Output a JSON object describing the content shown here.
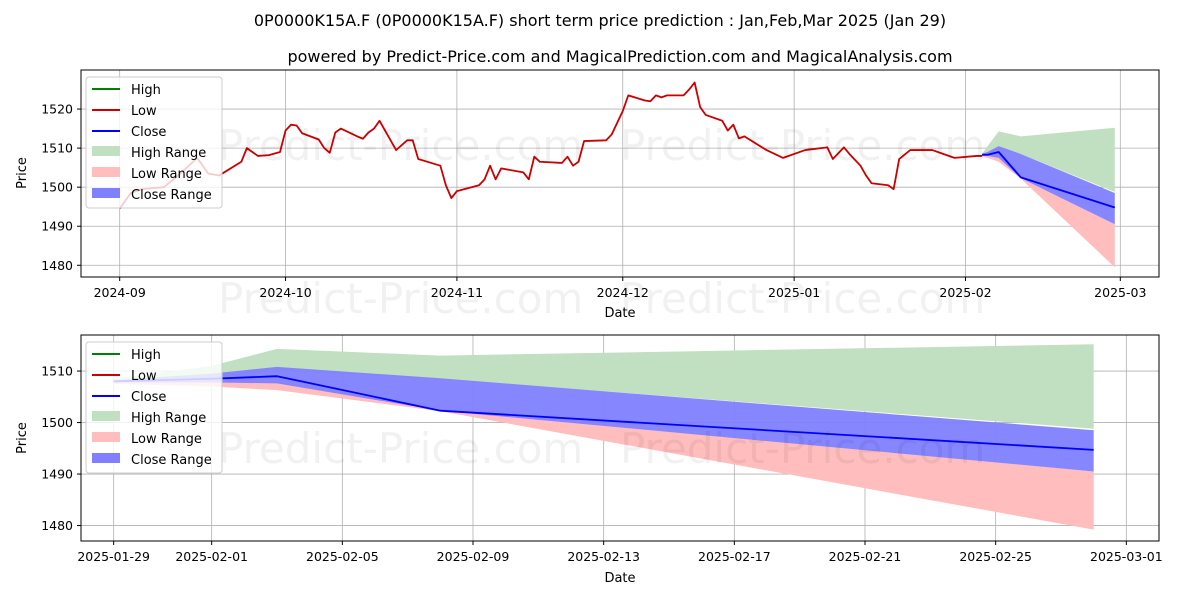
{
  "header": {
    "title": "0P0000K15A.F (0P0000K15A.F) short term price prediction : Jan,Feb,Mar 2025 (Jan 29)",
    "subtitle": "powered by Predict-Price.com and MagicalPrediction.com and MagicalAnalysis.com"
  },
  "watermark": "Predict-Price.com",
  "colors": {
    "high": "#008000",
    "low": "#cc0000",
    "close": "#0000ff",
    "high_range": "#c1dfc1",
    "low_range": "#ffbdbd",
    "close_range": "#7f7fff",
    "grid": "#b0b0b0"
  },
  "legend": [
    "High",
    "Low",
    "Close",
    "High Range",
    "Low Range",
    "Close Range"
  ],
  "chart_data": [
    {
      "type": "line",
      "xlabel": "Date",
      "ylabel": "Price",
      "xlim": [
        "2024-08-25",
        "2025-03-08"
      ],
      "ylim": [
        1477,
        1530
      ],
      "x_ticks": [
        "2024-09-01",
        "2024-10-01",
        "2024-11-01",
        "2024-12-01",
        "2025-01-01",
        "2025-02-01",
        "2025-03-01"
      ],
      "x_tick_labels": [
        "2024-09",
        "2024-10",
        "2024-11",
        "2024-12",
        "2025-01",
        "2025-02",
        "2025-03"
      ],
      "y_ticks": [
        1480,
        1490,
        1500,
        1510,
        1520
      ],
      "grid": true,
      "legend_position": "upper-left",
      "series": [
        {
          "name": "Low",
          "points": [
            [
              "2024-09-01",
              1494.5
            ],
            [
              "2024-09-03",
              1498.5
            ],
            [
              "2024-09-05",
              1499.5
            ],
            [
              "2024-09-09",
              1500.0
            ],
            [
              "2024-09-12",
              1503.5
            ],
            [
              "2024-09-15",
              1507.5
            ],
            [
              "2024-09-17",
              1503.5
            ],
            [
              "2024-09-19",
              1503.0
            ],
            [
              "2024-09-23",
              1506.5
            ],
            [
              "2024-09-24",
              1510.0
            ],
            [
              "2024-09-26",
              1508.0
            ],
            [
              "2024-09-28",
              1508.2
            ],
            [
              "2024-09-30",
              1509.0
            ],
            [
              "2024-10-01",
              1514.5
            ],
            [
              "2024-10-02",
              1516.0
            ],
            [
              "2024-10-03",
              1515.8
            ],
            [
              "2024-10-04",
              1513.8
            ],
            [
              "2024-10-07",
              1512.2
            ],
            [
              "2024-10-08",
              1510.0
            ],
            [
              "2024-10-09",
              1508.8
            ],
            [
              "2024-10-10",
              1514.0
            ],
            [
              "2024-10-11",
              1515.0
            ],
            [
              "2024-10-14",
              1513.0
            ],
            [
              "2024-10-15",
              1512.4
            ],
            [
              "2024-10-16",
              1514.0
            ],
            [
              "2024-10-17",
              1515.0
            ],
            [
              "2024-10-18",
              1517.0
            ],
            [
              "2024-10-21",
              1509.5
            ],
            [
              "2024-10-23",
              1512.0
            ],
            [
              "2024-10-24",
              1512.0
            ],
            [
              "2024-10-25",
              1507.2
            ],
            [
              "2024-10-29",
              1505.5
            ],
            [
              "2024-10-30",
              1500.5
            ],
            [
              "2024-10-31",
              1497.2
            ],
            [
              "2024-11-01",
              1499.0
            ],
            [
              "2024-11-05",
              1500.5
            ],
            [
              "2024-11-06",
              1502.0
            ],
            [
              "2024-11-07",
              1505.5
            ],
            [
              "2024-11-08",
              1502.0
            ],
            [
              "2024-11-09",
              1504.8
            ],
            [
              "2024-11-13",
              1503.8
            ],
            [
              "2024-11-14",
              1502.0
            ],
            [
              "2024-11-15",
              1507.8
            ],
            [
              "2024-11-16",
              1506.5
            ],
            [
              "2024-11-20",
              1506.2
            ],
            [
              "2024-11-21",
              1507.8
            ],
            [
              "2024-11-22",
              1505.5
            ],
            [
              "2024-11-23",
              1506.5
            ],
            [
              "2024-11-24",
              1511.8
            ],
            [
              "2024-11-28",
              1512.0
            ],
            [
              "2024-11-29",
              1513.5
            ],
            [
              "2024-12-01",
              1519.5
            ],
            [
              "2024-12-02",
              1523.5
            ],
            [
              "2024-12-05",
              1522.2
            ],
            [
              "2024-12-06",
              1522.0
            ],
            [
              "2024-12-07",
              1523.5
            ],
            [
              "2024-12-08",
              1523.0
            ],
            [
              "2024-12-09",
              1523.5
            ],
            [
              "2024-12-12",
              1523.5
            ],
            [
              "2024-12-13",
              1525.0
            ],
            [
              "2024-12-14",
              1526.8
            ],
            [
              "2024-12-15",
              1520.5
            ],
            [
              "2024-12-16",
              1518.5
            ],
            [
              "2024-12-19",
              1517.0
            ],
            [
              "2024-12-20",
              1514.5
            ],
            [
              "2024-12-21",
              1516.0
            ],
            [
              "2024-12-22",
              1512.5
            ],
            [
              "2024-12-23",
              1513.0
            ],
            [
              "2024-12-27",
              1509.5
            ],
            [
              "2024-12-30",
              1507.5
            ],
            [
              "2025-01-03",
              1509.5
            ],
            [
              "2025-01-07",
              1510.2
            ],
            [
              "2025-01-08",
              1507.2
            ],
            [
              "2025-01-10",
              1510.2
            ],
            [
              "2025-01-11",
              1508.5
            ],
            [
              "2025-01-13",
              1505.5
            ],
            [
              "2025-01-14",
              1503.0
            ],
            [
              "2025-01-15",
              1501.0
            ],
            [
              "2025-01-18",
              1500.5
            ],
            [
              "2025-01-19",
              1499.5
            ],
            [
              "2025-01-20",
              1507.2
            ],
            [
              "2025-01-22",
              1509.5
            ],
            [
              "2025-01-24",
              1509.5
            ],
            [
              "2025-01-26",
              1509.5
            ],
            [
              "2025-01-28",
              1508.5
            ],
            [
              "2025-01-30",
              1507.5
            ],
            [
              "2025-02-03",
              1508.0
            ],
            [
              "2025-02-04",
              1508.0
            ]
          ]
        },
        {
          "name": "Close",
          "points": [
            [
              "2025-02-04",
              1508.3
            ],
            [
              "2025-02-05",
              1508.3
            ],
            [
              "2025-02-07",
              1509.0
            ],
            [
              "2025-02-11",
              1502.5
            ],
            [
              "2025-02-28",
              1494.8
            ]
          ]
        }
      ],
      "ranges": [
        {
          "name": "High Range",
          "upper": [
            [
              "2025-02-04",
              1508.6
            ],
            [
              "2025-02-05",
              1510.5
            ],
            [
              "2025-02-07",
              1514.3
            ],
            [
              "2025-02-11",
              1513.0
            ],
            [
              "2025-02-28",
              1515.2
            ]
          ],
          "lower": [
            [
              "2025-02-04",
              1508.2
            ],
            [
              "2025-02-05",
              1508.5
            ],
            [
              "2025-02-07",
              1509.5
            ],
            [
              "2025-02-11",
              1508.5
            ],
            [
              "2025-02-28",
              1498.8
            ]
          ]
        },
        {
          "name": "Low Range",
          "upper": [
            [
              "2025-02-04",
              1508.2
            ],
            [
              "2025-02-05",
              1508.2
            ],
            [
              "2025-02-07",
              1508.0
            ],
            [
              "2025-02-11",
              1502.5
            ],
            [
              "2025-02-28",
              1490.5
            ]
          ],
          "lower": [
            [
              "2025-02-04",
              1507.8
            ],
            [
              "2025-02-05",
              1507.5
            ],
            [
              "2025-02-07",
              1506.5
            ],
            [
              "2025-02-11",
              1502.2
            ],
            [
              "2025-02-28",
              1479.5
            ]
          ]
        },
        {
          "name": "Close Range",
          "upper": [
            [
              "2025-02-04",
              1508.6
            ],
            [
              "2025-02-05",
              1509.0
            ],
            [
              "2025-02-07",
              1510.5
            ],
            [
              "2025-02-11",
              1508.5
            ],
            [
              "2025-02-28",
              1498.5
            ]
          ],
          "lower": [
            [
              "2025-02-04",
              1508.0
            ],
            [
              "2025-02-05",
              1508.0
            ],
            [
              "2025-02-07",
              1507.5
            ],
            [
              "2025-02-11",
              1502.3
            ],
            [
              "2025-02-28",
              1490.5
            ]
          ]
        }
      ]
    },
    {
      "type": "line",
      "xlabel": "Date",
      "ylabel": "Price",
      "xlim": [
        "2025-01-28",
        "2025-03-02"
      ],
      "ylim": [
        1477,
        1517
      ],
      "x_ticks": [
        "2025-01-29",
        "2025-02-01",
        "2025-02-05",
        "2025-02-09",
        "2025-02-13",
        "2025-02-17",
        "2025-02-21",
        "2025-02-25",
        "2025-03-01"
      ],
      "y_ticks": [
        1480,
        1490,
        1500,
        1510
      ],
      "grid": true,
      "legend_position": "upper-left",
      "series": [
        {
          "name": "Close",
          "points": [
            [
              "2025-01-29",
              1508.0
            ],
            [
              "2025-02-01",
              1508.5
            ],
            [
              "2025-02-03",
              1509.0
            ],
            [
              "2025-02-08",
              1502.3
            ],
            [
              "2025-02-28",
              1494.7
            ]
          ]
        }
      ],
      "ranges": [
        {
          "name": "High Range",
          "upper": [
            [
              "2025-01-29",
              1508.5
            ],
            [
              "2025-02-01",
              1511.0
            ],
            [
              "2025-02-03",
              1514.3
            ],
            [
              "2025-02-08",
              1513.0
            ],
            [
              "2025-02-28",
              1515.2
            ]
          ],
          "lower": [
            [
              "2025-01-29",
              1508.0
            ],
            [
              "2025-02-01",
              1508.8
            ],
            [
              "2025-02-03",
              1510.0
            ],
            [
              "2025-02-08",
              1508.5
            ],
            [
              "2025-02-28",
              1498.8
            ]
          ]
        },
        {
          "name": "Low Range",
          "upper": [
            [
              "2025-01-29",
              1507.8
            ],
            [
              "2025-02-01",
              1508.0
            ],
            [
              "2025-02-03",
              1508.0
            ],
            [
              "2025-02-08",
              1502.5
            ],
            [
              "2025-02-28",
              1490.5
            ]
          ],
          "lower": [
            [
              "2025-01-29",
              1507.5
            ],
            [
              "2025-02-01",
              1507.0
            ],
            [
              "2025-02-03",
              1506.3
            ],
            [
              "2025-02-08",
              1502.2
            ],
            [
              "2025-02-28",
              1479.2
            ]
          ]
        },
        {
          "name": "Close Range",
          "upper": [
            [
              "2025-01-29",
              1508.2
            ],
            [
              "2025-02-01",
              1509.5
            ],
            [
              "2025-02-03",
              1510.8
            ],
            [
              "2025-02-08",
              1508.6
            ],
            [
              "2025-02-28",
              1498.5
            ]
          ],
          "lower": [
            [
              "2025-01-29",
              1507.8
            ],
            [
              "2025-02-01",
              1507.8
            ],
            [
              "2025-02-03",
              1507.6
            ],
            [
              "2025-02-08",
              1502.3
            ],
            [
              "2025-02-28",
              1490.5
            ]
          ]
        }
      ]
    }
  ]
}
